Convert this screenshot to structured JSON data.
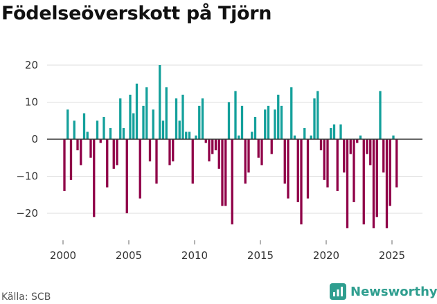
{
  "title": "Födelseöverskott på Tjörn",
  "source": "Källa: SCB",
  "brand": {
    "name": "Newsworthy",
    "icon": "newsworthy-logo-icon"
  },
  "colors": {
    "positive": "#13a09b",
    "negative": "#8f0047",
    "grid": "#dddddd",
    "zero": "#333333"
  },
  "chart_data": {
    "type": "bar",
    "title": "Födelseöverskott på Tjörn",
    "xlabel": "",
    "ylabel": "",
    "ylim": [
      -27,
      21
    ],
    "xlim": [
      1997.5,
      2026.9
    ],
    "yticks": [
      20,
      10,
      0,
      -10,
      -20
    ],
    "ytick_labels": [
      "20",
      "10",
      "0",
      "−10",
      "−20"
    ],
    "xticks": [
      2000,
      2005,
      2010,
      2015,
      2020,
      2025
    ],
    "xtick_labels": [
      "2000",
      "2005",
      "2010",
      "2015",
      "2020",
      "2025"
    ],
    "frequency": "quarterly",
    "start": 2000.0,
    "values": [
      -14,
      8,
      -11,
      5,
      -3,
      -7,
      7,
      2,
      -5,
      -21,
      5,
      -1,
      6,
      -13,
      3,
      -8,
      -7,
      11,
      3,
      -20,
      12,
      7,
      15,
      -16,
      9,
      14,
      -6,
      8,
      -12,
      20,
      5,
      14,
      -7,
      -6,
      11,
      5,
      12,
      2,
      2,
      -12,
      1,
      9,
      11,
      -1,
      -6,
      -4,
      -3,
      -8,
      -18,
      -18,
      10,
      -23,
      13,
      1,
      9,
      -12,
      -9,
      2,
      6,
      -5,
      -7,
      8,
      9,
      -4,
      8,
      12,
      9,
      -12,
      -16,
      14,
      1,
      -17,
      -23,
      3,
      -16,
      1,
      11,
      13,
      -3,
      -11,
      -13,
      3,
      4,
      -14,
      4,
      -9,
      -24,
      -4,
      -17,
      -1,
      1,
      -23,
      -4,
      -7,
      -24,
      -21,
      13,
      -9,
      -24,
      -18,
      1,
      -13
    ]
  }
}
